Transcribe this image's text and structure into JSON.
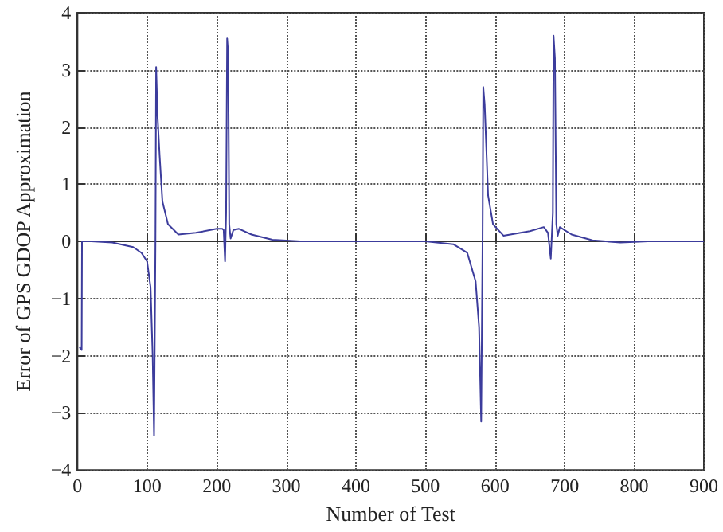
{
  "chart_data": {
    "type": "line",
    "xlabel": "Number of Test",
    "ylabel": "Error of GPS GDOP Approximation",
    "series": [
      {
        "color": "#3c3c9c",
        "x": [
          3,
          6,
          6.5,
          20,
          50,
          80,
          92,
          100,
          105,
          108,
          110,
          112,
          113,
          115,
          118,
          122,
          130,
          145,
          170,
          200,
          208,
          210,
          212,
          213.5,
          215,
          216.5,
          218,
          220,
          224,
          232,
          250,
          280,
          320,
          400,
          500,
          540,
          560,
          572,
          577,
          580,
          582,
          583,
          585,
          590,
          597,
          612,
          650,
          670,
          676,
          680,
          683,
          684,
          686,
          688,
          690,
          693,
          710,
          740,
          780,
          820,
          900
        ],
        "values": [
          -1.85,
          -1.9,
          0,
          0,
          -0.02,
          -0.1,
          -0.2,
          -0.35,
          -0.8,
          -2,
          -3.4,
          0,
          3.05,
          2.2,
          1.5,
          0.7,
          0.3,
          0.12,
          0.15,
          0.22,
          0.22,
          0.2,
          -0.35,
          0.5,
          3.55,
          3.3,
          0.3,
          0.05,
          0.2,
          0.22,
          0.12,
          0.03,
          0,
          0,
          0,
          -0.05,
          -0.2,
          -0.7,
          -1.5,
          -3.15,
          0,
          2.7,
          2.4,
          0.8,
          0.3,
          0.1,
          0.18,
          0.25,
          0.15,
          -0.3,
          0.5,
          3.6,
          3.2,
          0.3,
          0.1,
          0.25,
          0.12,
          0.02,
          -0.02,
          0,
          0
        ]
      }
    ],
    "xlim": [
      0,
      900
    ],
    "xticks": [
      0,
      100,
      200,
      300,
      400,
      500,
      600,
      700,
      800,
      900
    ],
    "ylim": [
      -4,
      4
    ],
    "yticks": [
      -4,
      -3,
      -2,
      -1,
      0,
      1,
      2,
      3,
      4
    ],
    "grid": true,
    "marker": "none",
    "line_style": "solid"
  }
}
